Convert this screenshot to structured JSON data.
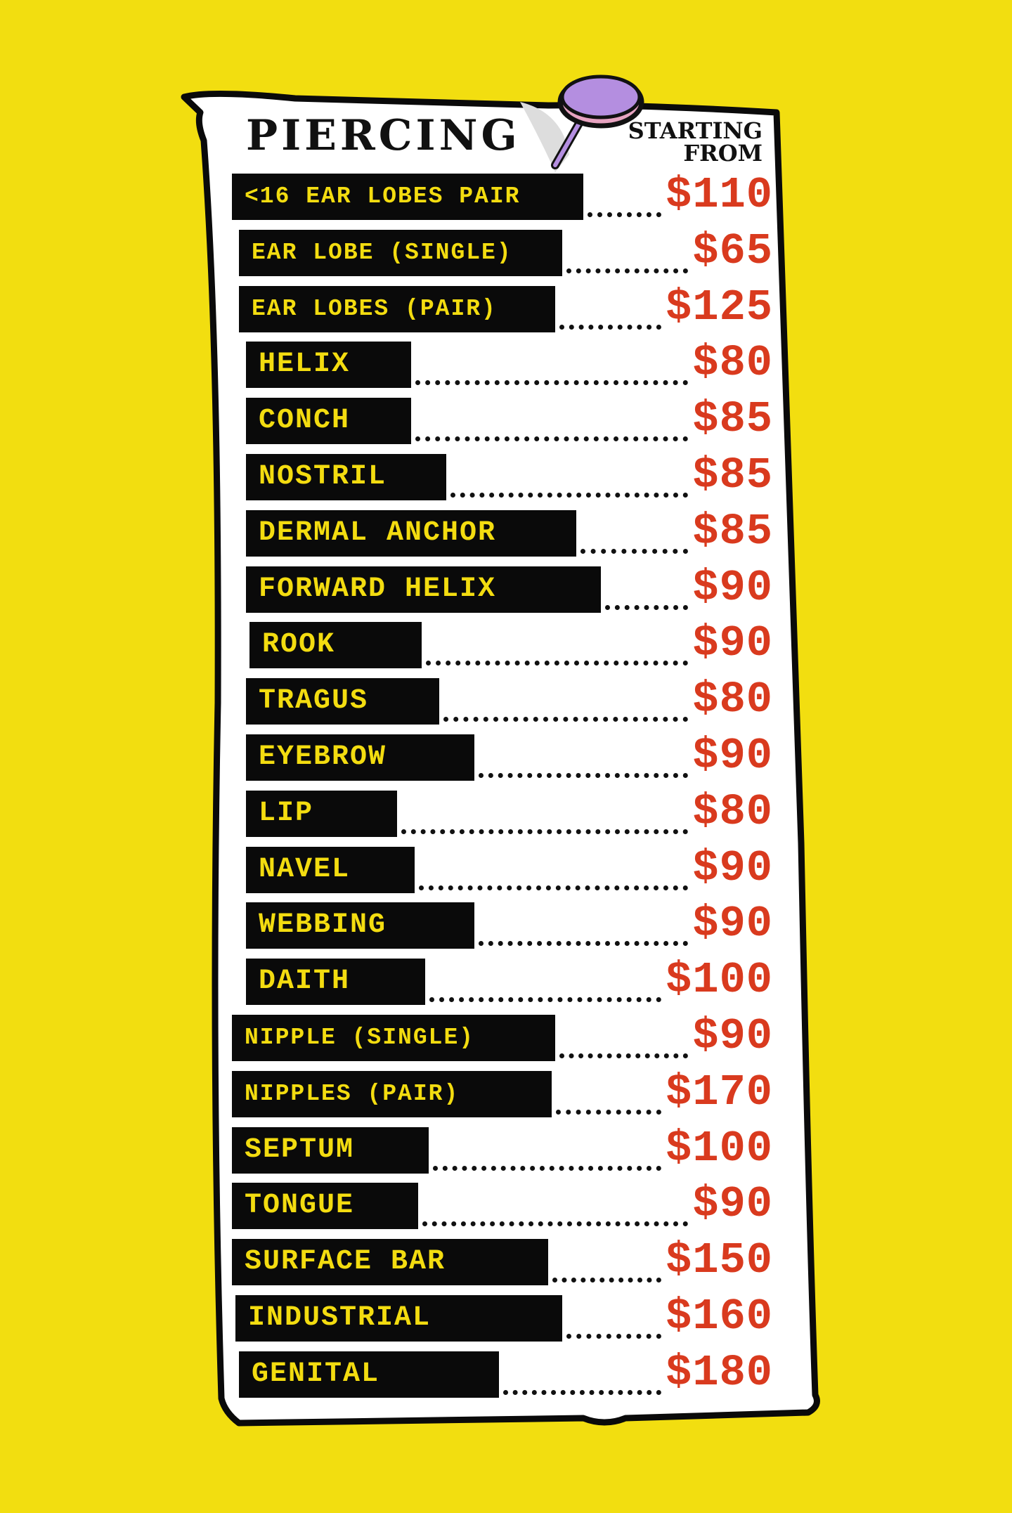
{
  "colors": {
    "background": "#f2de10",
    "label_bg": "#0a0a0a",
    "label_text": "#f3dc10",
    "price": "#d93a1e",
    "pin": "#b48ee0"
  },
  "header": {
    "title": "PIERCING",
    "subtitle_line1": "STARTING",
    "subtitle_line2": "FROM"
  },
  "items": [
    {
      "label": "<16 EAR LOBES PAIR",
      "price": "$110"
    },
    {
      "label": "EAR LOBE (SINGLE)",
      "price": "$65"
    },
    {
      "label": "EAR LOBES (PAIR)",
      "price": "$125"
    },
    {
      "label": "HELIX",
      "price": "$80"
    },
    {
      "label": "CONCH",
      "price": "$85"
    },
    {
      "label": "NOSTRIL",
      "price": "$85"
    },
    {
      "label": "DERMAL ANCHOR",
      "price": "$85"
    },
    {
      "label": "FORWARD HELIX",
      "price": "$90"
    },
    {
      "label": "ROOK",
      "price": "$90"
    },
    {
      "label": "TRAGUS",
      "price": "$80"
    },
    {
      "label": "EYEBROW",
      "price": "$90"
    },
    {
      "label": "LIP",
      "price": "$80"
    },
    {
      "label": "NAVEL",
      "price": "$90"
    },
    {
      "label": "WEBBING",
      "price": "$90"
    },
    {
      "label": "DAITH",
      "price": "$100"
    },
    {
      "label": "NIPPLE (SINGLE)",
      "price": "$90"
    },
    {
      "label": "NIPPLES (PAIR)",
      "price": "$170"
    },
    {
      "label": "SEPTUM",
      "price": "$100"
    },
    {
      "label": "TONGUE",
      "price": "$90"
    },
    {
      "label": "SURFACE BAR",
      "price": "$150"
    },
    {
      "label": "INDUSTRIAL",
      "price": "$160"
    },
    {
      "label": "GENITAL",
      "price": "$180"
    }
  ],
  "decor": {
    "pin_icon": "push-pin-icon"
  }
}
